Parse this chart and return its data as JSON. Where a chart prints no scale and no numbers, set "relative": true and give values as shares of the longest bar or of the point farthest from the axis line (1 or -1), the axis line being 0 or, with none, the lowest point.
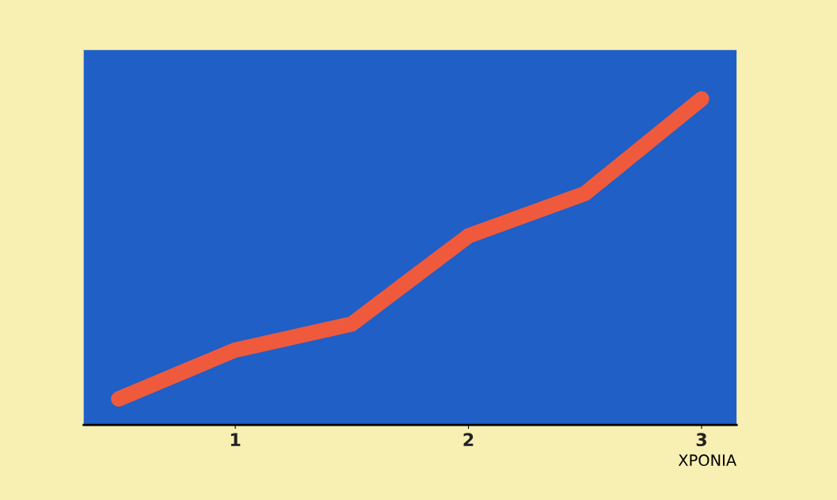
{
  "chart_data": {
    "type": "line",
    "relative": true,
    "xlabel": "ΧΡΟΝΙΑ",
    "categories": [
      null,
      "1",
      null,
      "2",
      null,
      "3"
    ],
    "series": [
      {
        "color": "#ef5a3c",
        "values": [
          0.08,
          0.23,
          0.31,
          0.58,
          0.71,
          1
        ]
      }
    ],
    "grid": false,
    "legend": false
  }
}
